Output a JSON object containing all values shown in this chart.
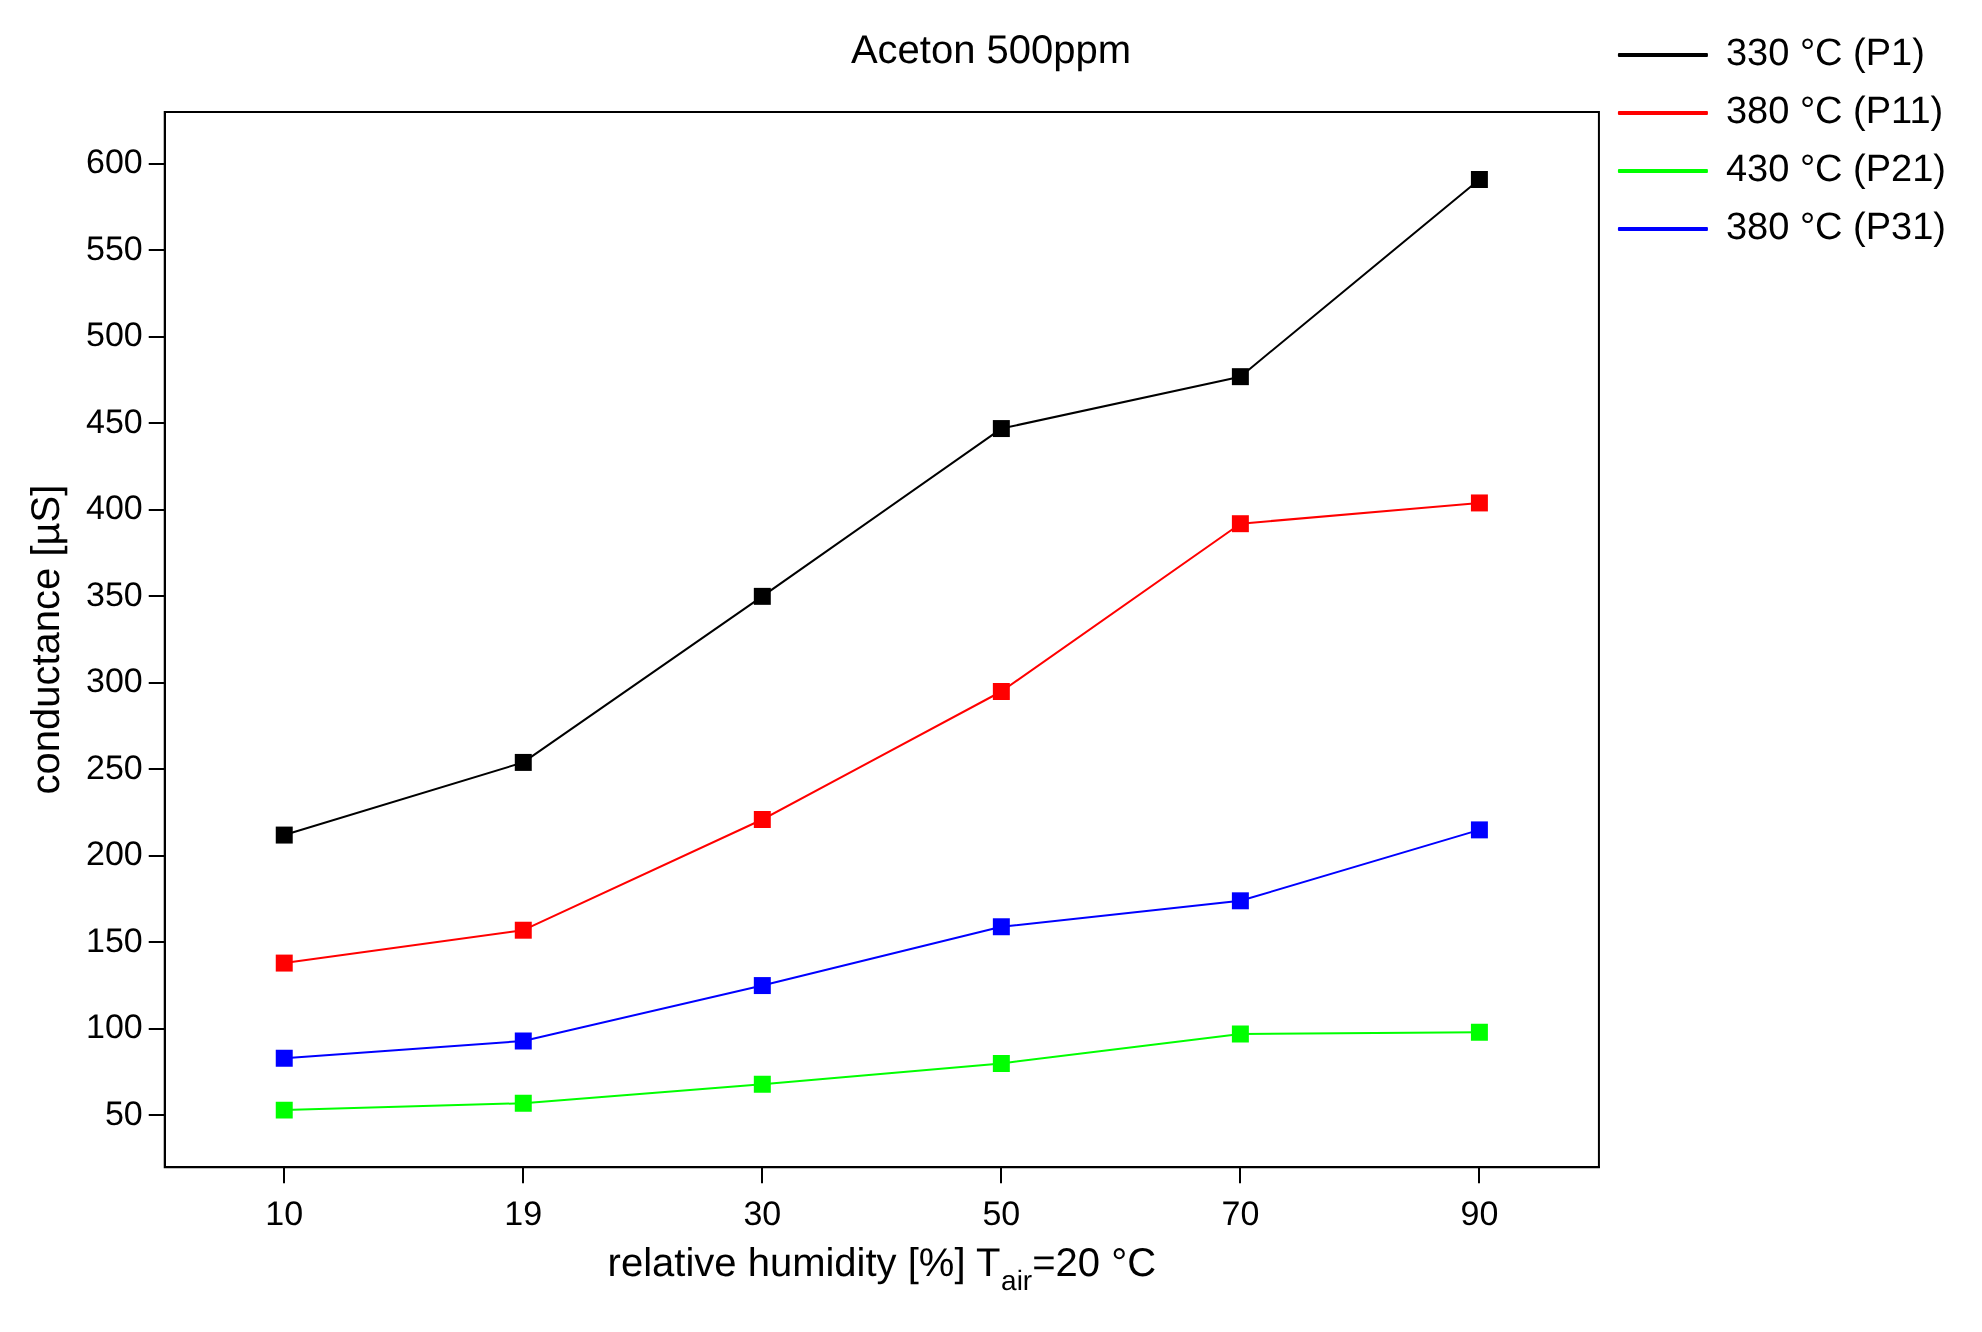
{
  "chart_data": {
    "type": "line",
    "title": "Aceton 500ppm",
    "xlabel": "relative humidity [%] T$_{air}$=20 °C",
    "ylabel": "conductance [µS]",
    "categories": [
      "10",
      "19",
      "30",
      "50",
      "70",
      "90"
    ],
    "series": [
      {
        "name": "330 °C (P1)",
        "color": "#000000",
        "values": [
          212,
          254,
          350,
          447,
          477,
          591
        ]
      },
      {
        "name": "380 °C (P11)",
        "color": "#ff0000",
        "values": [
          138,
          157,
          221,
          295,
          392,
          404
        ]
      },
      {
        "name": "430 °C (P21)",
        "color": "#00ff00",
        "values": [
          53,
          57,
          68,
          80,
          97,
          98
        ]
      },
      {
        "name": "380 °C (P31)",
        "color": "#0000ff",
        "values": [
          83,
          93,
          125,
          159,
          174,
          215
        ]
      }
    ],
    "ylim": [
      20,
      630
    ],
    "yticks": [
      50,
      100,
      150,
      200,
      250,
      300,
      350,
      400,
      450,
      500,
      550,
      600
    ],
    "grid": false,
    "legend": "top right",
    "marker": "square",
    "line_style": "solid"
  }
}
